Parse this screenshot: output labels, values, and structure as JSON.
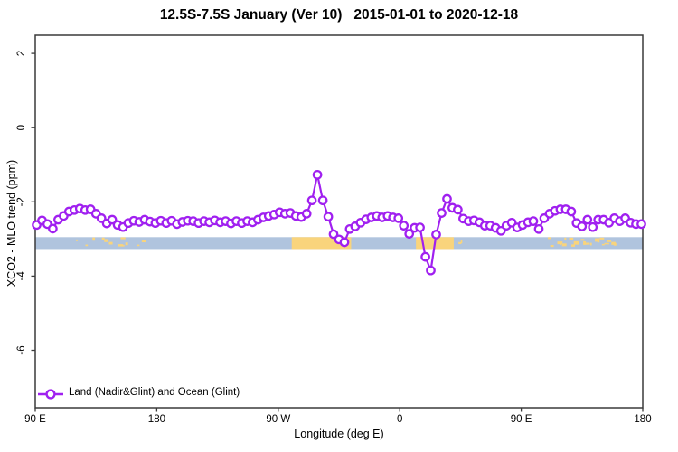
{
  "chart_data": {
    "type": "line",
    "title": "12.5S-7.5S January (Ver 10)   2015-01-01 to 2020-12-18",
    "xlabel": "Longitude (deg E)",
    "ylabel": "XCO2 - MLO trend (ppm)",
    "ylim": [
      -7.5,
      2.5
    ],
    "x_axis_wrapped_deg": [
      90,
      540
    ],
    "x_ticks": [
      {
        "pos": 90,
        "label": "90 E"
      },
      {
        "pos": 180,
        "label": "180"
      },
      {
        "pos": 270,
        "label": "90 W"
      },
      {
        "pos": 360,
        "label": "0"
      },
      {
        "pos": 450,
        "label": "90 E"
      },
      {
        "pos": 540,
        "label": "180"
      }
    ],
    "y_ticks": [
      {
        "pos": 2,
        "label": "2"
      },
      {
        "pos": 0,
        "label": "0"
      },
      {
        "pos": -2,
        "label": "-2"
      },
      {
        "pos": -4,
        "label": "-4"
      },
      {
        "pos": -6,
        "label": "-6"
      }
    ],
    "grid": false,
    "legend_position": "bottom-left-inside",
    "series": [
      {
        "name": "Land (Nadir&Glint) and Ocean (Glint)",
        "color": "#A020F0",
        "marker": "open-circle",
        "lon_start": 91,
        "lon_step": 4,
        "values": [
          -2.62,
          -2.5,
          -2.6,
          -2.72,
          -2.48,
          -2.38,
          -2.26,
          -2.22,
          -2.18,
          -2.22,
          -2.2,
          -2.32,
          -2.44,
          -2.58,
          -2.48,
          -2.62,
          -2.68,
          -2.57,
          -2.51,
          -2.54,
          -2.48,
          -2.53,
          -2.57,
          -2.51,
          -2.57,
          -2.51,
          -2.6,
          -2.54,
          -2.51,
          -2.52,
          -2.57,
          -2.52,
          -2.55,
          -2.5,
          -2.55,
          -2.52,
          -2.58,
          -2.52,
          -2.57,
          -2.52,
          -2.55,
          -2.48,
          -2.42,
          -2.38,
          -2.34,
          -2.28,
          -2.32,
          -2.3,
          -2.38,
          -2.41,
          -2.32,
          -1.96,
          -1.27,
          -1.96,
          -2.4,
          -2.87,
          -3.01,
          -3.09,
          -2.73,
          -2.66,
          -2.56,
          -2.47,
          -2.42,
          -2.38,
          -2.42,
          -2.38,
          -2.42,
          -2.44,
          -2.64,
          -2.86,
          -2.7,
          -2.69,
          -3.48,
          -3.85,
          -2.88,
          -2.3,
          -1.92,
          -2.16,
          -2.21,
          -2.45,
          -2.52,
          -2.5,
          -2.55,
          -2.64,
          -2.64,
          -2.7,
          -2.78,
          -2.64,
          -2.56,
          -2.69,
          -2.62,
          -2.55,
          -2.52,
          -2.73,
          -2.44,
          -2.32,
          -2.24,
          -2.2,
          -2.2,
          -2.26,
          -2.57,
          -2.66,
          -2.48,
          -2.68,
          -2.48,
          -2.48,
          -2.56,
          -2.44,
          -2.52,
          -2.44,
          -2.56,
          -2.6,
          -2.6
        ]
      }
    ],
    "strip": {
      "description": "land-ocean map band",
      "value_top": -2.95,
      "value_bottom": -3.27,
      "segments": [
        {
          "type": "mixed",
          "start": 108,
          "end": 172
        },
        {
          "type": "land",
          "start": 280,
          "end": 324
        },
        {
          "type": "land",
          "start": 372,
          "end": 400
        },
        {
          "type": "mixed",
          "start": 400,
          "end": 409
        },
        {
          "type": "mixed",
          "start": 468,
          "end": 522
        }
      ]
    }
  },
  "colors": {
    "background": "#FFFFFF",
    "axis": "#3A3A3A",
    "text": "#000000",
    "series_purple": "#A020F0",
    "marker_fill": "#FFFFFF",
    "ocean_blue": "#B0C4DE",
    "land_orange": "#F9D47C"
  }
}
